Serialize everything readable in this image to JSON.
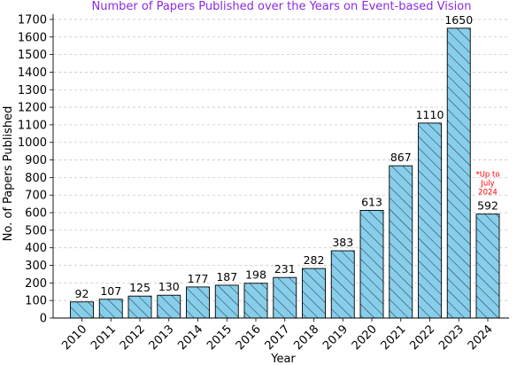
{
  "chart_data": {
    "type": "bar",
    "title": "Number of Papers Published over the Years on Event-based Vision",
    "xlabel": "Year",
    "ylabel": "No. of Papers Published",
    "categories": [
      "2010",
      "2011",
      "2012",
      "2013",
      "2014",
      "2015",
      "2016",
      "2017",
      "2018",
      "2019",
      "2020",
      "2021",
      "2022",
      "2023",
      "2024"
    ],
    "values": [
      92,
      107,
      125,
      130,
      177,
      187,
      198,
      231,
      282,
      383,
      613,
      867,
      1110,
      1650,
      592
    ],
    "value_labels": [
      "92",
      "107",
      "125",
      "130",
      "177",
      "187",
      "198",
      "231",
      "282",
      "383",
      "613",
      "867",
      "1110",
      "1650",
      "592"
    ],
    "yticks": [
      0,
      100,
      200,
      300,
      400,
      500,
      600,
      700,
      800,
      900,
      1000,
      1100,
      1200,
      1300,
      1400,
      1500,
      1600,
      1700
    ],
    "ytick_labels": [
      "0",
      "100",
      "200",
      "300",
      "400",
      "500",
      "600",
      "700",
      "800",
      "900",
      "1000",
      "1100",
      "1200",
      "1300",
      "1400",
      "1500",
      "1600",
      "1700"
    ],
    "ylim": [
      0,
      1730
    ],
    "grid": "y-dashed",
    "annotation": {
      "category": "2024",
      "lines": [
        "*Up to",
        "July",
        "2024"
      ]
    },
    "colors": {
      "bar_fill": "#87CEEB",
      "bar_edge": "#000000",
      "hatch": "#1a1a1a",
      "title": "#8A2BE2",
      "note": "#FF0000",
      "grid": "#c8c8c8"
    }
  }
}
